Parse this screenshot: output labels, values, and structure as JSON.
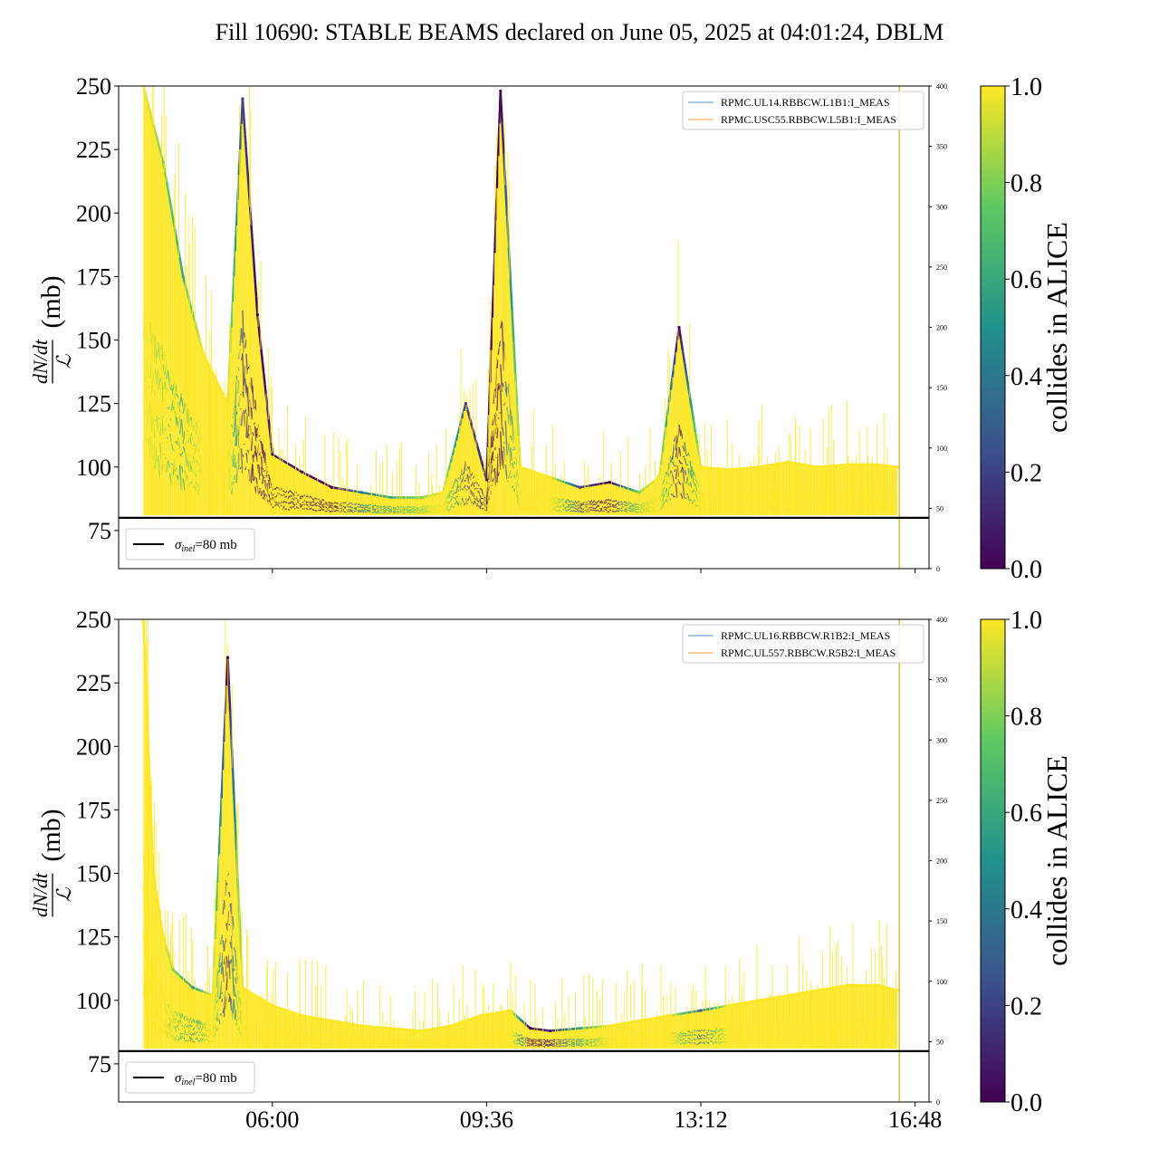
{
  "figure_title": "Fill 10690: STABLE BEAMS declared on June 05, 2025 at 04:01:24, DBLM",
  "colorbar_label": "collides in ALICE",
  "colorbar_ticks": [
    "0.0",
    "0.2",
    "0.4",
    "0.6",
    "0.8",
    "1.0"
  ],
  "colormap": [
    "#440154",
    "#3b528b",
    "#21918c",
    "#5ec962",
    "#fde725"
  ],
  "reference_line": {
    "value": 80,
    "label": "=80 mb",
    "symbol": "σ",
    "subscript": "inel",
    "color": "#000000"
  },
  "chart_data": [
    {
      "type": "scatter",
      "ylabel": "dN/dt / ℒ (mb)",
      "ylabel_num": "dN/dt",
      "ylabel_den": "ℒ",
      "ylabel_unit": "(mb)",
      "ylim": [
        60,
        250
      ],
      "yticks": [
        "75",
        "100",
        "125",
        "150",
        "175",
        "200",
        "225",
        "250"
      ],
      "y2lim": [
        0,
        400
      ],
      "y2ticks": [
        "0",
        "50",
        "100",
        "150",
        "200",
        "250",
        "300",
        "350",
        "400"
      ],
      "xlim": [
        "03:25",
        "17:02"
      ],
      "xticks": [],
      "legend": [
        "RPMC.UL14.RBBCW.L1B1:I_MEAS",
        "RPMC.USC55.RBBCW.L5B1:I_MEAS"
      ],
      "legend_colors": [
        "#1f77b4",
        "#ff7f0e"
      ],
      "x": [
        "03:50",
        "04:10",
        "04:30",
        "04:50",
        "05:15",
        "05:30",
        "05:45",
        "06:00",
        "06:30",
        "07:00",
        "07:30",
        "08:00",
        "08:30",
        "08:52",
        "09:15",
        "09:36",
        "09:50",
        "10:10",
        "10:40",
        "11:10",
        "11:40",
        "12:10",
        "12:30",
        "12:50",
        "13:12",
        "13:40",
        "14:10",
        "14:40",
        "15:10",
        "15:40",
        "16:10",
        "16:30"
      ],
      "y": [
        250,
        220,
        175,
        145,
        125,
        245,
        160,
        105,
        98,
        92,
        90,
        88,
        88,
        90,
        125,
        95,
        248,
        100,
        96,
        92,
        94,
        90,
        96,
        155,
        100,
        99,
        100,
        102,
        100,
        101,
        101,
        100
      ],
      "collides": [
        1,
        0.8,
        0.6,
        1,
        1,
        0.2,
        0,
        0.1,
        0.05,
        0,
        0.4,
        0.6,
        0.8,
        1,
        0.2,
        0.1,
        0,
        1,
        1,
        0.2,
        0,
        0.8,
        1,
        0,
        1,
        1,
        1,
        1,
        1,
        1,
        1,
        1
      ]
    },
    {
      "type": "scatter",
      "ylabel": "dN/dt / ℒ (mb)",
      "ylabel_num": "dN/dt",
      "ylabel_den": "ℒ",
      "ylabel_unit": "(mb)",
      "ylim": [
        60,
        250
      ],
      "yticks": [
        "75",
        "100",
        "125",
        "150",
        "175",
        "200",
        "225",
        "250"
      ],
      "y2lim": [
        0,
        400
      ],
      "y2ticks": [
        "0",
        "50",
        "100",
        "150",
        "200",
        "250",
        "300",
        "350",
        "400"
      ],
      "xlim": [
        "03:25",
        "17:02"
      ],
      "xticks": [
        "06:00",
        "09:36",
        "13:12",
        "16:48"
      ],
      "legend": [
        "RPMC.UL16.RBBCW.R1B2:I_MEAS",
        "RPMC.UL557.RBBCW.R5B2:I_MEAS"
      ],
      "legend_colors": [
        "#1f77b4",
        "#ff7f0e"
      ],
      "x": [
        "03:50",
        "04:00",
        "04:10",
        "04:20",
        "04:40",
        "05:00",
        "05:15",
        "05:30",
        "06:00",
        "06:30",
        "07:00",
        "07:30",
        "08:00",
        "08:30",
        "09:00",
        "09:30",
        "10:00",
        "10:20",
        "10:40",
        "11:10",
        "11:40",
        "12:10",
        "12:40",
        "13:12",
        "13:40",
        "14:10",
        "14:40",
        "15:10",
        "15:40",
        "16:10",
        "16:30"
      ],
      "y": [
        250,
        150,
        125,
        112,
        105,
        102,
        235,
        105,
        98,
        94,
        92,
        90,
        89,
        88,
        90,
        94,
        96,
        89,
        88,
        89,
        90,
        92,
        94,
        96,
        98,
        100,
        102,
        104,
        106,
        106,
        104
      ],
      "collides": [
        1,
        1,
        1,
        0.8,
        0.5,
        1,
        0,
        1,
        1,
        1,
        1,
        1,
        1,
        1,
        1,
        1,
        1,
        0,
        0.1,
        0.6,
        1,
        1,
        1,
        0.3,
        1,
        1,
        1,
        1,
        1,
        1,
        1
      ]
    }
  ]
}
